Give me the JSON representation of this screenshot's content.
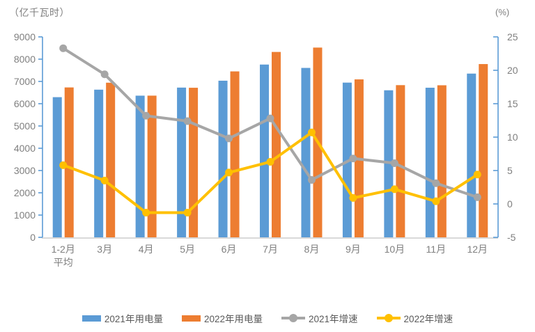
{
  "chart_data": {
    "type": "bar+line combo",
    "title": "",
    "left_axis": {
      "title": "（亿千瓦时）",
      "min": 0,
      "max": 9000,
      "step": 1000,
      "ticks": [
        9000,
        8000,
        7000,
        6000,
        5000,
        4000,
        3000,
        2000,
        1000,
        0
      ]
    },
    "right_axis": {
      "title": "(%)",
      "min": -5,
      "max": 25,
      "step": 5,
      "ticks": [
        25,
        20,
        15,
        10,
        5,
        0,
        -5
      ]
    },
    "categories": [
      "1-2月\n平均",
      "3月",
      "4月",
      "5月",
      "6月",
      "7月",
      "8月",
      "9月",
      "10月",
      "11月",
      "12月"
    ],
    "series": [
      {
        "name": "2021年用电量",
        "type": "bar",
        "axis": "left",
        "color": "#5B9BD5",
        "values": [
          6294,
          6631,
          6361,
          6724,
          7033,
          7758,
          7607,
          6947,
          6603,
          6718,
          7352
        ]
      },
      {
        "name": "2022年用电量",
        "type": "bar",
        "axis": "left",
        "color": "#ED7D31",
        "values": [
          6731,
          6944,
          6362,
          6716,
          7451,
          8324,
          8520,
          7092,
          6834,
          6828,
          7780
        ]
      },
      {
        "name": "2021年增速",
        "type": "line",
        "axis": "right",
        "color": "#A6A6A6",
        "values": [
          23.3,
          19.4,
          13.2,
          12.4,
          9.8,
          12.8,
          3.6,
          6.8,
          6.1,
          3.1,
          1.0
        ]
      },
      {
        "name": "2022年增速",
        "type": "line",
        "axis": "right",
        "color": "#FFC000",
        "values": [
          5.8,
          3.5,
          -1.3,
          -1.3,
          4.7,
          6.3,
          10.7,
          0.9,
          2.2,
          0.4,
          4.4
        ]
      }
    ],
    "legend_position": "bottom",
    "grid": false,
    "colors": {
      "axis_line": "#5B9BD5",
      "baseline": "#D9D9D9",
      "axis_text": "#7F7F7F",
      "legend_text": "#595959"
    }
  }
}
